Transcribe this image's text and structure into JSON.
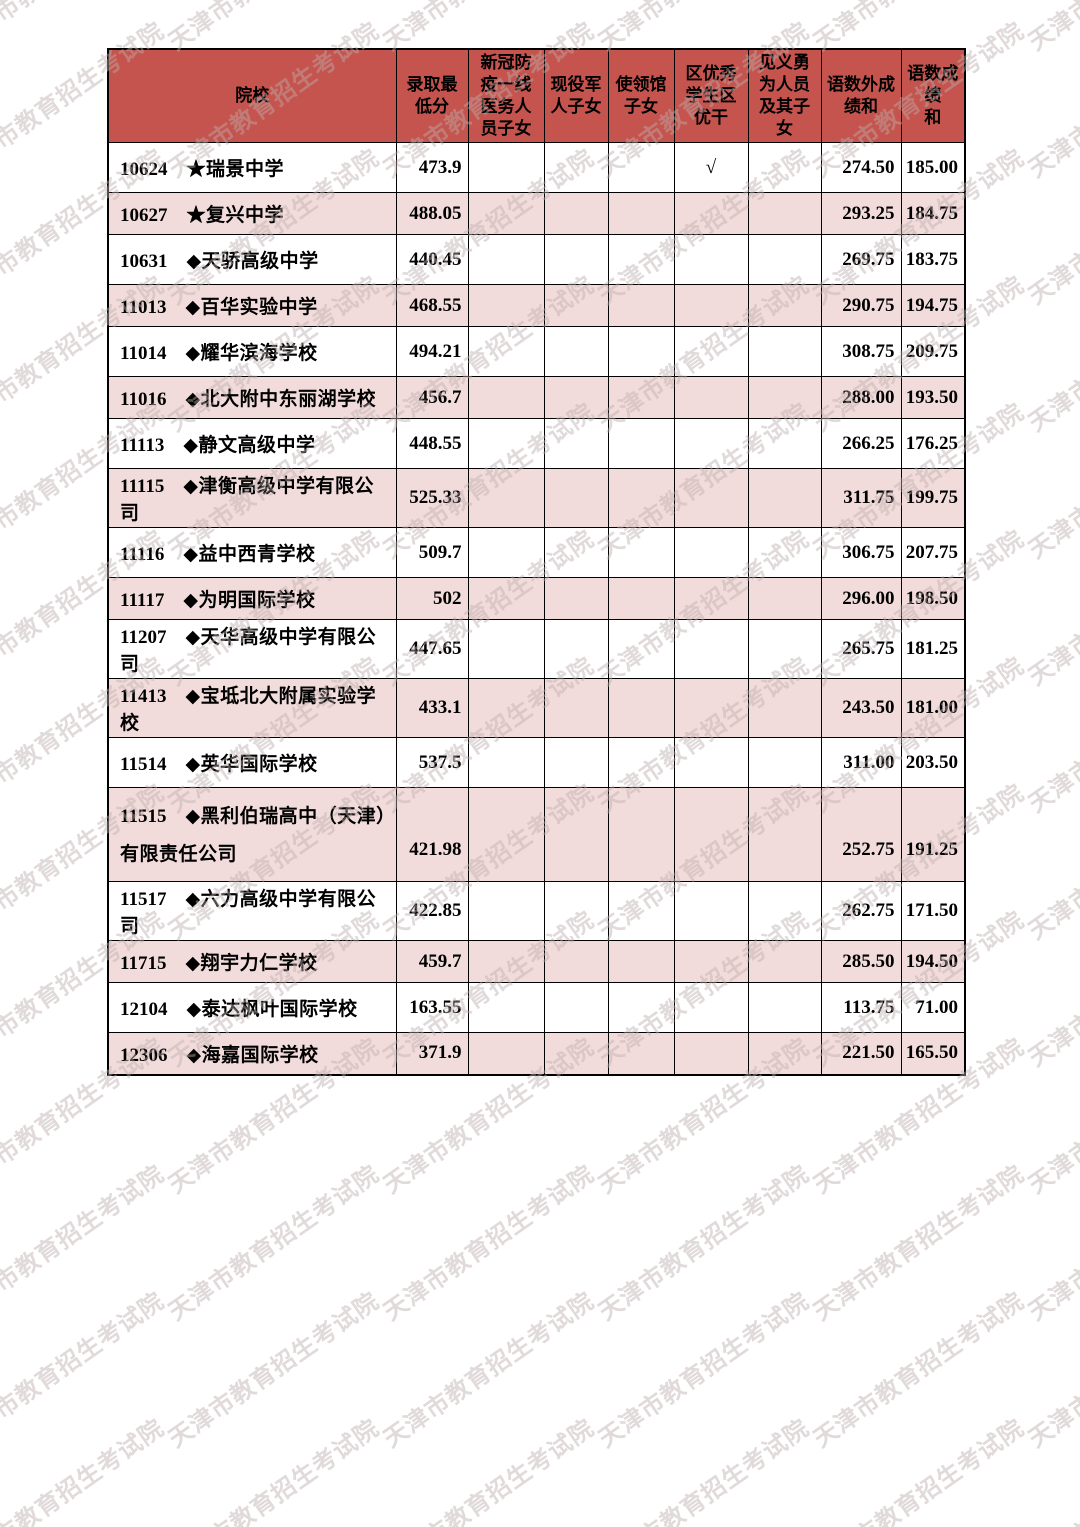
{
  "watermark": {
    "text": "天津市教育招生考试院"
  },
  "colors": {
    "header_bg": "#C5544E",
    "shaded_row_bg": "#F2DCDB",
    "border": "#000000",
    "watermark": "rgba(188,172,172,0.45)"
  },
  "table": {
    "columns": [
      {
        "key": "school",
        "label": "院校"
      },
      {
        "key": "min_score",
        "label": "录取最\n低分"
      },
      {
        "key": "covid",
        "label": "新冠防\n疫一线\n医务人\n员子女"
      },
      {
        "key": "military",
        "label": "现役军\n人子女"
      },
      {
        "key": "embassy",
        "label": "使领馆\n子女"
      },
      {
        "key": "outstanding",
        "label": "区优秀\n学生区\n优干"
      },
      {
        "key": "hero",
        "label": "见义勇\n为人员\n及其子\n女"
      },
      {
        "key": "sum_cme",
        "label": "语数外成\n绩和"
      },
      {
        "key": "sum_cm",
        "label": "语数成绩\n和"
      }
    ],
    "rows": [
      {
        "code": "10624",
        "name": "★瑞景中学",
        "min_score": "473.9",
        "covid": "",
        "military": "",
        "embassy": "",
        "outstanding": "√",
        "hero": "",
        "sum_cme": "274.50",
        "sum_cm": "185.00",
        "shaded": false,
        "tall": false
      },
      {
        "code": "10627",
        "name": "★复兴中学",
        "min_score": "488.05",
        "covid": "",
        "military": "",
        "embassy": "",
        "outstanding": "",
        "hero": "",
        "sum_cme": "293.25",
        "sum_cm": "184.75",
        "shaded": true,
        "tall": false
      },
      {
        "code": "10631",
        "name": "◆天骄高级中学",
        "min_score": "440.45",
        "covid": "",
        "military": "",
        "embassy": "",
        "outstanding": "",
        "hero": "",
        "sum_cme": "269.75",
        "sum_cm": "183.75",
        "shaded": false,
        "tall": false
      },
      {
        "code": "11013",
        "name": "◆百华实验中学",
        "min_score": "468.55",
        "covid": "",
        "military": "",
        "embassy": "",
        "outstanding": "",
        "hero": "",
        "sum_cme": "290.75",
        "sum_cm": "194.75",
        "shaded": true,
        "tall": false
      },
      {
        "code": "11014",
        "name": "◆耀华滨海学校",
        "min_score": "494.21",
        "covid": "",
        "military": "",
        "embassy": "",
        "outstanding": "",
        "hero": "",
        "sum_cme": "308.75",
        "sum_cm": "209.75",
        "shaded": false,
        "tall": false
      },
      {
        "code": "11016",
        "name": "◆北大附中东丽湖学校",
        "min_score": "456.7",
        "covid": "",
        "military": "",
        "embassy": "",
        "outstanding": "",
        "hero": "",
        "sum_cme": "288.00",
        "sum_cm": "193.50",
        "shaded": true,
        "tall": false
      },
      {
        "code": "11113",
        "name": "◆静文高级中学",
        "min_score": "448.55",
        "covid": "",
        "military": "",
        "embassy": "",
        "outstanding": "",
        "hero": "",
        "sum_cme": "266.25",
        "sum_cm": "176.25",
        "shaded": false,
        "tall": false
      },
      {
        "code": "11115",
        "name": "◆津衡高级中学有限公司",
        "min_score": "525.33",
        "covid": "",
        "military": "",
        "embassy": "",
        "outstanding": "",
        "hero": "",
        "sum_cme": "311.75",
        "sum_cm": "199.75",
        "shaded": true,
        "tall": false
      },
      {
        "code": "11116",
        "name": "◆益中西青学校",
        "min_score": "509.7",
        "covid": "",
        "military": "",
        "embassy": "",
        "outstanding": "",
        "hero": "",
        "sum_cme": "306.75",
        "sum_cm": "207.75",
        "shaded": false,
        "tall": false
      },
      {
        "code": "11117",
        "name": "◆为明国际学校",
        "min_score": "502",
        "covid": "",
        "military": "",
        "embassy": "",
        "outstanding": "",
        "hero": "",
        "sum_cme": "296.00",
        "sum_cm": "198.50",
        "shaded": true,
        "tall": false
      },
      {
        "code": "11207",
        "name": "◆天华高级中学有限公司",
        "min_score": "447.65",
        "covid": "",
        "military": "",
        "embassy": "",
        "outstanding": "",
        "hero": "",
        "sum_cme": "265.75",
        "sum_cm": "181.25",
        "shaded": false,
        "tall": false
      },
      {
        "code": "11413",
        "name": "◆宝坻北大附属实验学校",
        "min_score": "433.1",
        "covid": "",
        "military": "",
        "embassy": "",
        "outstanding": "",
        "hero": "",
        "sum_cme": "243.50",
        "sum_cm": "181.00",
        "shaded": true,
        "tall": false
      },
      {
        "code": "11514",
        "name": "◆英华国际学校",
        "min_score": "537.5",
        "covid": "",
        "military": "",
        "embassy": "",
        "outstanding": "",
        "hero": "",
        "sum_cme": "311.00",
        "sum_cm": "203.50",
        "shaded": false,
        "tall": false
      },
      {
        "code": "11515",
        "name": "◆黑利伯瑞高中（天津）有限责任公司",
        "min_score": "421.98",
        "covid": "",
        "military": "",
        "embassy": "",
        "outstanding": "",
        "hero": "",
        "sum_cme": "252.75",
        "sum_cm": "191.25",
        "shaded": true,
        "tall": true
      },
      {
        "code": "11517",
        "name": "◆六力高级中学有限公司",
        "min_score": "422.85",
        "covid": "",
        "military": "",
        "embassy": "",
        "outstanding": "",
        "hero": "",
        "sum_cme": "262.75",
        "sum_cm": "171.50",
        "shaded": false,
        "tall": false
      },
      {
        "code": "11715",
        "name": "◆翔宇力仁学校",
        "min_score": "459.7",
        "covid": "",
        "military": "",
        "embassy": "",
        "outstanding": "",
        "hero": "",
        "sum_cme": "285.50",
        "sum_cm": "194.50",
        "shaded": true,
        "tall": false
      },
      {
        "code": "12104",
        "name": "◆泰达枫叶国际学校",
        "min_score": "163.55",
        "covid": "",
        "military": "",
        "embassy": "",
        "outstanding": "",
        "hero": "",
        "sum_cme": "113.75",
        "sum_cm": "71.00",
        "shaded": false,
        "tall": false
      },
      {
        "code": "12306",
        "name": "◆海嘉国际学校",
        "min_score": "371.9",
        "covid": "",
        "military": "",
        "embassy": "",
        "outstanding": "",
        "hero": "",
        "sum_cme": "221.50",
        "sum_cm": "165.50",
        "shaded": true,
        "tall": false
      }
    ]
  }
}
